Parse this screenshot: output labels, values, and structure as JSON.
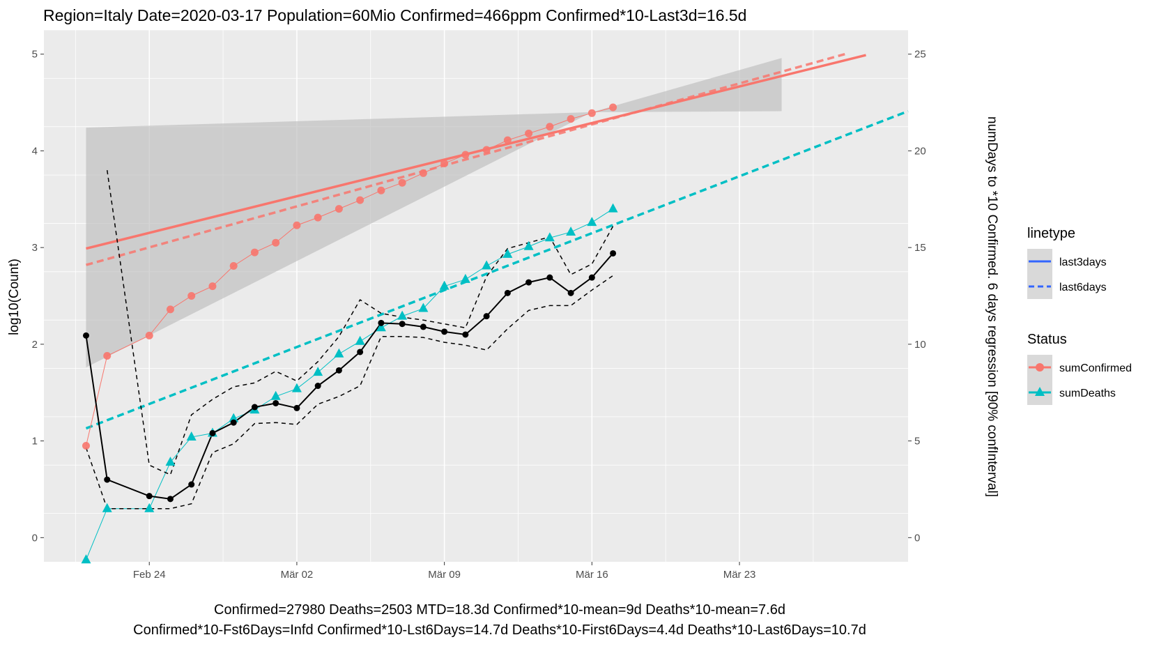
{
  "title": "Region=Italy Date=2020-03-17  Population=60Mio Confirmed=466ppm  Confirmed*10-Last3d=16.5d",
  "footer_line1": "Confirmed=27980 Deaths=2503  MTD=18.3d   Confirmed*10-mean=9d  Deaths*10-mean=7.6d",
  "footer_line2": "Confirmed*10-Fst6Days=Infd  Confirmed*10-Lst6Days=14.7d    Deaths*10-First6Days=4.4d  Deaths*10-Last6Days=10.7d",
  "legend": {
    "linetype_title": "linetype",
    "linetype_items": [
      "last3days",
      "last6days"
    ],
    "status_title": "Status",
    "status_items": [
      "sumConfirmed",
      "sumDeaths"
    ]
  },
  "colors": {
    "confirmed": "#F8766D",
    "deaths": "#00BFC4",
    "ratio": "#000000",
    "ribbon": "#bdbdbd",
    "panel": "#ebebeb",
    "legend_line": "#3366FF"
  },
  "chart_data": {
    "type": "line",
    "xlabel": "",
    "ylabel": "log10(Count)",
    "ylabel_right": "numDays to *10 Confirmed. 6 days regression [90% confInterval]",
    "x_ticks": [
      "Feb 24",
      "Mär 02",
      "Mär 09",
      "Mär 16",
      "Mär 23"
    ],
    "xlim": [
      "2020-02-19",
      "2020-03-31"
    ],
    "ylim": [
      -0.25,
      5.25
    ],
    "y_ticks": [
      0,
      1,
      2,
      3,
      4,
      5
    ],
    "y2_ticks": [
      0,
      5,
      10,
      15,
      20,
      25
    ],
    "y2lim": [
      -1.25,
      26.25
    ],
    "grid": true,
    "legend_position": "right",
    "series": [
      {
        "name": "sumConfirmed",
        "x": [
          "2020-02-21",
          "2020-02-22",
          "2020-02-24",
          "2020-02-25",
          "2020-02-26",
          "2020-02-27",
          "2020-02-28",
          "2020-02-29",
          "2020-03-01",
          "2020-03-02",
          "2020-03-03",
          "2020-03-04",
          "2020-03-05",
          "2020-03-06",
          "2020-03-07",
          "2020-03-08",
          "2020-03-09",
          "2020-03-10",
          "2020-03-11",
          "2020-03-12",
          "2020-03-13",
          "2020-03-14",
          "2020-03-15",
          "2020-03-16",
          "2020-03-17"
        ],
        "values": [
          0.95,
          1.88,
          2.09,
          2.36,
          2.5,
          2.6,
          2.81,
          2.95,
          3.05,
          3.23,
          3.31,
          3.4,
          3.49,
          3.59,
          3.67,
          3.77,
          3.87,
          3.96,
          4.01,
          4.11,
          4.18,
          4.25,
          4.33,
          4.39,
          4.45
        ]
      },
      {
        "name": "sumDeaths",
        "x": [
          "2020-02-21",
          "2020-02-22",
          "2020-02-24",
          "2020-02-25",
          "2020-02-26",
          "2020-02-27",
          "2020-02-28",
          "2020-02-29",
          "2020-03-01",
          "2020-03-02",
          "2020-03-03",
          "2020-03-04",
          "2020-03-05",
          "2020-03-06",
          "2020-03-07",
          "2020-03-08",
          "2020-03-09",
          "2020-03-10",
          "2020-03-11",
          "2020-03-12",
          "2020-03-13",
          "2020-03-14",
          "2020-03-15",
          "2020-03-16",
          "2020-03-17"
        ],
        "values": [
          -0.23,
          0.3,
          0.3,
          0.78,
          1.04,
          1.08,
          1.23,
          1.32,
          1.46,
          1.54,
          1.71,
          1.9,
          2.03,
          2.17,
          2.29,
          2.37,
          2.6,
          2.67,
          2.81,
          2.93,
          3.01,
          3.1,
          3.16,
          3.26,
          3.4
        ]
      },
      {
        "name": "ratio",
        "x": [
          "2020-02-21",
          "2020-02-22",
          "2020-02-24",
          "2020-02-25",
          "2020-02-26",
          "2020-02-27",
          "2020-02-28",
          "2020-02-29",
          "2020-03-01",
          "2020-03-02",
          "2020-03-03",
          "2020-03-04",
          "2020-03-05",
          "2020-03-06",
          "2020-03-07",
          "2020-03-08",
          "2020-03-09",
          "2020-03-10",
          "2020-03-11",
          "2020-03-12",
          "2020-03-13",
          "2020-03-14",
          "2020-03-15",
          "2020-03-16",
          "2020-03-17"
        ],
        "values": [
          2.09,
          0.6,
          0.43,
          0.4,
          0.55,
          1.08,
          1.19,
          1.35,
          1.39,
          1.34,
          1.57,
          1.73,
          1.92,
          2.22,
          2.21,
          2.18,
          2.13,
          2.1,
          2.29,
          2.53,
          2.64,
          2.69,
          2.53,
          2.69,
          2.94
        ],
        "upper": [
          null,
          3.8,
          0.75,
          0.65,
          1.27,
          1.43,
          1.56,
          1.6,
          1.72,
          1.62,
          1.82,
          2.08,
          2.46,
          2.32,
          2.28,
          2.25,
          2.21,
          2.17,
          2.7,
          2.99,
          3.05,
          3.11,
          2.72,
          2.83,
          3.22
        ],
        "lower": [
          0.93,
          0.3,
          0.3,
          0.3,
          0.35,
          0.88,
          0.97,
          1.18,
          1.19,
          1.17,
          1.38,
          1.46,
          1.57,
          2.08,
          2.08,
          2.07,
          2.02,
          1.99,
          1.94,
          2.16,
          2.35,
          2.4,
          2.4,
          2.56,
          2.71
        ]
      },
      {
        "name": "confirmed-last3days",
        "x": [
          "2020-02-21",
          "2020-03-29"
        ],
        "values": [
          2.99,
          4.99
        ]
      },
      {
        "name": "confirmed-last6days",
        "x": [
          "2020-02-21",
          "2020-03-28"
        ],
        "values": [
          2.82,
          5.0
        ]
      },
      {
        "name": "deaths-last6days",
        "x": [
          "2020-02-21",
          "2020-03-31"
        ],
        "values": [
          1.13,
          4.41
        ]
      },
      {
        "name": "ribbon",
        "x": [
          "2020-02-21",
          "2020-03-16",
          "2020-03-25"
        ],
        "upper": [
          4.24,
          4.4,
          4.96
        ],
        "lower": [
          1.76,
          4.4,
          4.41
        ]
      }
    ]
  }
}
